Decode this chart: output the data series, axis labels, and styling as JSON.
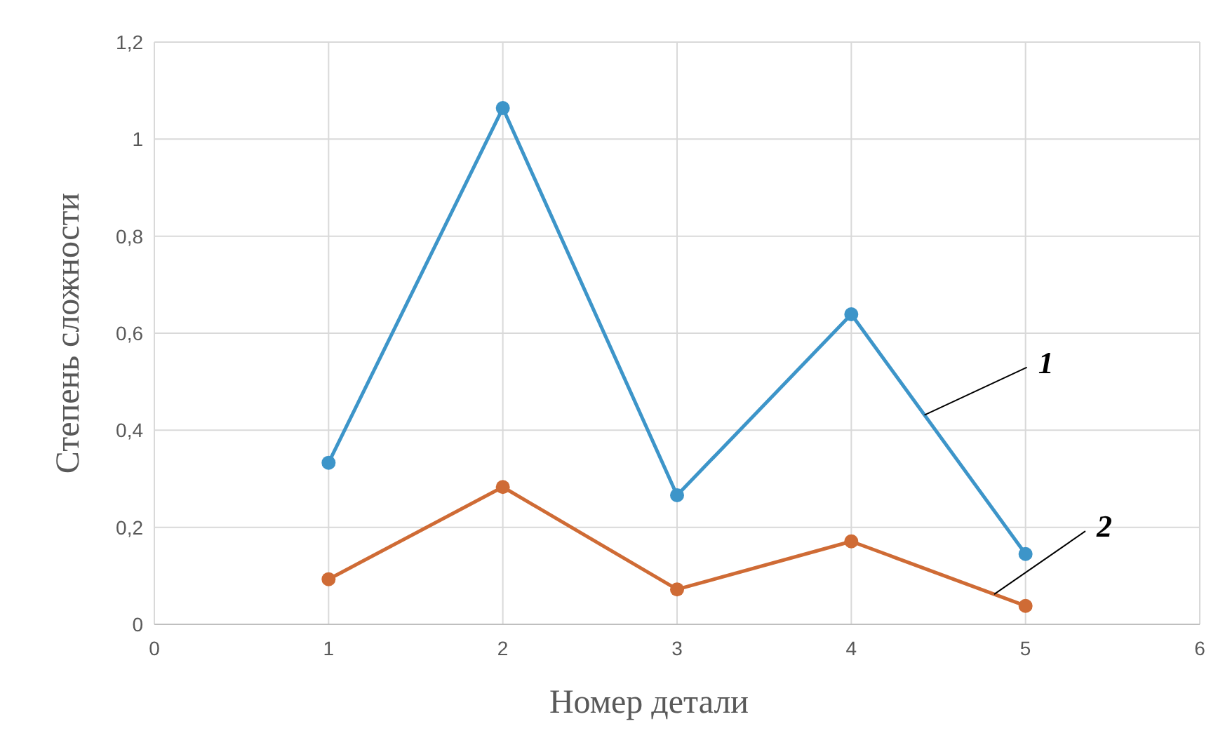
{
  "chart_data": {
    "type": "line",
    "xlabel": "Номер детали",
    "ylabel": "Степень сложности",
    "x": [
      1,
      2,
      3,
      4,
      5
    ],
    "series": [
      {
        "name": "1",
        "color": "#3d95c9",
        "values": [
          0.333,
          1.064,
          0.266,
          0.639,
          0.145
        ]
      },
      {
        "name": "2",
        "color": "#cf6b35",
        "values": [
          0.093,
          0.283,
          0.072,
          0.171,
          0.038
        ]
      }
    ],
    "xlim": [
      0,
      6
    ],
    "xticks": [
      0,
      1,
      2,
      3,
      4,
      5,
      6
    ],
    "ylim": [
      0,
      1.2
    ],
    "yticks": [
      0,
      {
        "value": 0.2,
        "label": "0,2"
      },
      {
        "value": 0.4,
        "label": "0,4"
      },
      {
        "value": 0.6,
        "label": "0,6"
      },
      {
        "value": 0.8,
        "label": "0,8"
      },
      1,
      {
        "value": 1.2,
        "label": "1,2"
      }
    ],
    "grid": true,
    "marker": "circle",
    "line_style": "solid",
    "legend": false
  }
}
